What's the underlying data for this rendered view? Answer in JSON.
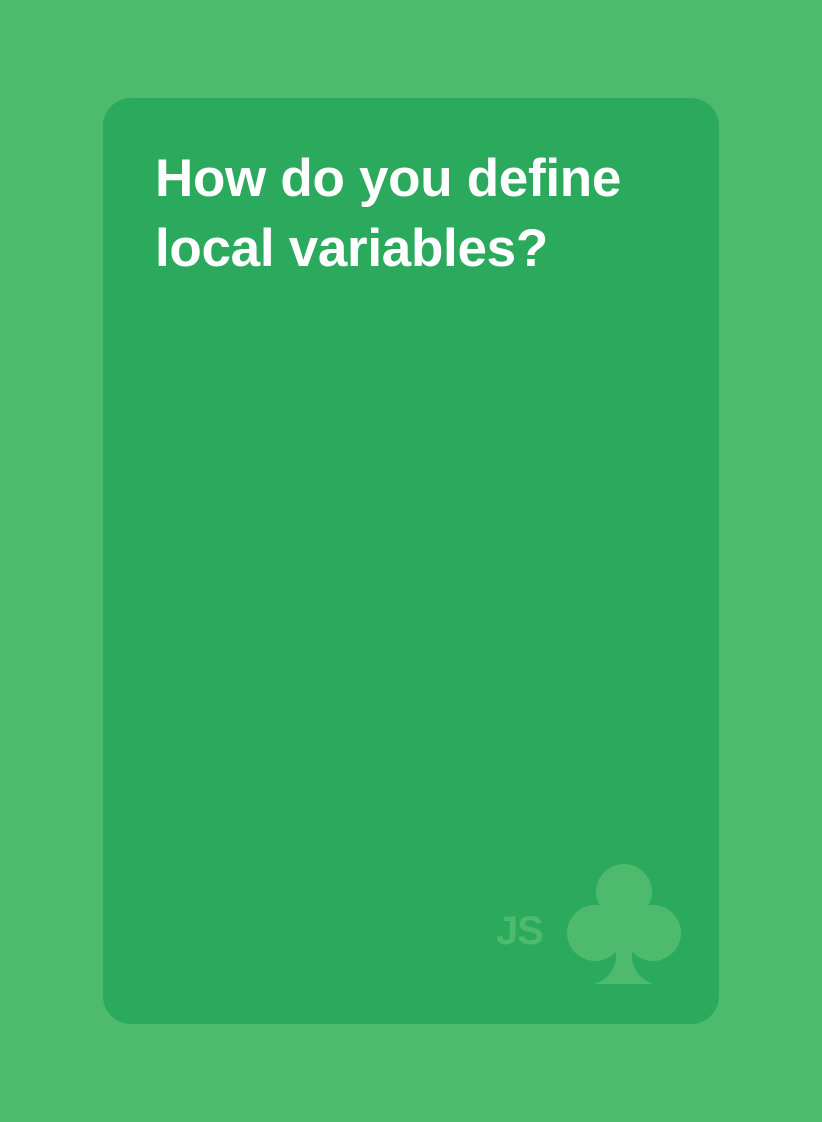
{
  "colors": {
    "background": "#4dba6e",
    "card": "#2ba95c",
    "text": "#ffffff",
    "emblem": "#4dba6e"
  },
  "card": {
    "question": "How do you define local variables?",
    "brand": {
      "label": "JS",
      "icon": "club-icon"
    }
  }
}
